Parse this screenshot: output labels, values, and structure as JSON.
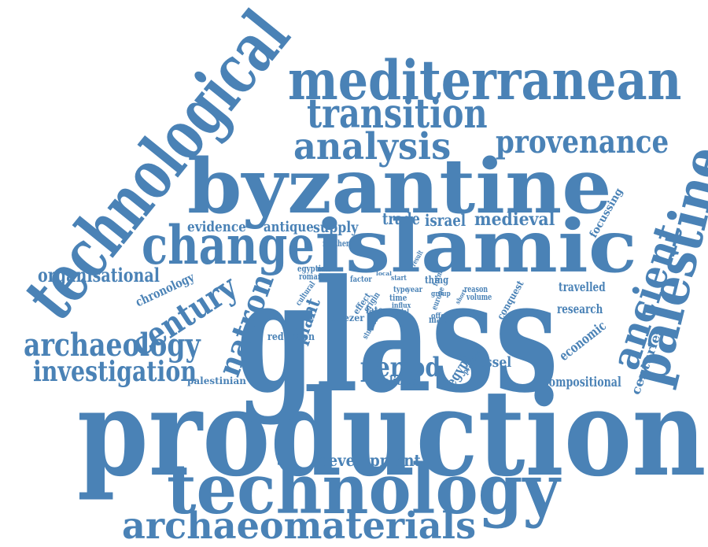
{
  "cloud": {
    "color": "#4a82b6",
    "words": [
      {
        "text": "production"
      },
      {
        "text": "glass"
      },
      {
        "text": "byzantine"
      },
      {
        "text": "technological"
      },
      {
        "text": "mediterranean"
      },
      {
        "text": "technology"
      },
      {
        "text": "islamic"
      },
      {
        "text": "archaeomaterials"
      },
      {
        "text": "transition"
      },
      {
        "text": "palestine"
      },
      {
        "text": "analysis"
      },
      {
        "text": "change"
      },
      {
        "text": "provenance"
      },
      {
        "text": "ancient"
      },
      {
        "text": "century"
      },
      {
        "text": "natron"
      },
      {
        "text": "archaeology"
      },
      {
        "text": "investigation"
      },
      {
        "text": "period"
      },
      {
        "text": "organisational"
      },
      {
        "text": "medieval"
      },
      {
        "text": "evidence"
      },
      {
        "text": "antique"
      },
      {
        "text": "supply"
      },
      {
        "text": "trade"
      },
      {
        "text": "israel"
      },
      {
        "text": "development"
      },
      {
        "text": "compositional"
      },
      {
        "text": "chronology"
      },
      {
        "text": "plant"
      },
      {
        "text": "economic"
      },
      {
        "text": "centuries"
      },
      {
        "text": "focussing"
      },
      {
        "text": "travelled"
      },
      {
        "text": "research"
      },
      {
        "text": "palestinian"
      },
      {
        "text": "egypt"
      },
      {
        "text": "vessel"
      },
      {
        "text": "political"
      },
      {
        "text": "reduction"
      },
      {
        "text": "thing"
      },
      {
        "text": "late"
      },
      {
        "text": "major"
      },
      {
        "text": "volume"
      },
      {
        "text": "reason"
      },
      {
        "text": "conquest"
      },
      {
        "text": "eli'ezer"
      },
      {
        "text": "roman"
      },
      {
        "text": "egyptian"
      },
      {
        "text": "northern"
      },
      {
        "text": "effect"
      },
      {
        "text": "origin"
      },
      {
        "text": "time"
      },
      {
        "text": "type"
      },
      {
        "text": "year"
      },
      {
        "text": "cultural"
      },
      {
        "text": "factor"
      },
      {
        "text": "studies"
      },
      {
        "text": "influx"
      },
      {
        "text": "model"
      },
      {
        "text": "practice"
      },
      {
        "text": "group"
      },
      {
        "text": "europe"
      },
      {
        "text": "form"
      },
      {
        "text": "offer"
      },
      {
        "text": "result"
      },
      {
        "text": "local"
      },
      {
        "text": "short"
      },
      {
        "text": "start"
      }
    ]
  }
}
